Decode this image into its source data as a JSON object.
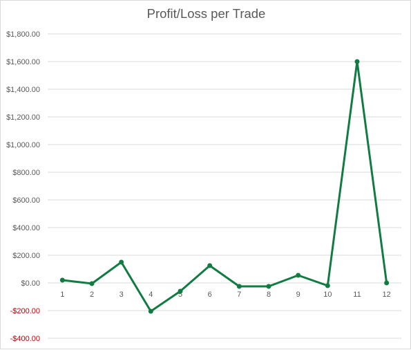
{
  "chart_data": {
    "type": "line",
    "title": "Profit/Loss per Trade",
    "xlabel": "",
    "ylabel": "",
    "categories": [
      "1",
      "2",
      "3",
      "4",
      "5",
      "6",
      "7",
      "8",
      "9",
      "10",
      "11",
      "12"
    ],
    "series": [
      {
        "values": [
          20,
          -5,
          150,
          -205,
          -60,
          125,
          -25,
          -25,
          55,
          -20,
          1600,
          0
        ],
        "color": "#107C41"
      }
    ],
    "ylim": [
      -400,
      1800
    ],
    "y_tick_values": [
      1800,
      1600,
      1400,
      1200,
      1000,
      800,
      600,
      400,
      200,
      0,
      -200,
      -400
    ],
    "y_tick_labels": [
      "$1,800.00",
      "$1,600.00",
      "$1,400.00",
      "$1,200.00",
      "$1,000.00",
      "$800.00",
      "$600.00",
      "$400.00",
      "$200.00",
      "$0.00",
      "-$200.00",
      "-$400.00"
    ],
    "negative_label_color": "#C00000",
    "grid": true,
    "legend": "none"
  }
}
